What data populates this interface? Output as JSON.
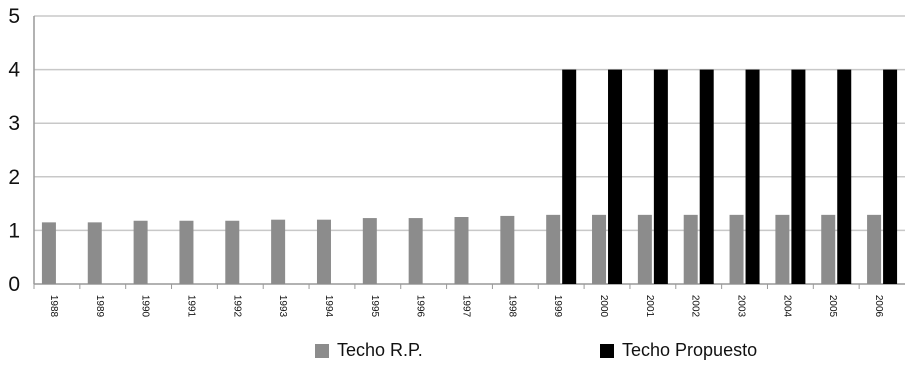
{
  "chart_data": {
    "type": "bar",
    "title": "",
    "xlabel": "",
    "ylabel": "",
    "ylim": [
      0,
      5
    ],
    "yticks": [
      0,
      1,
      2,
      3,
      4,
      5
    ],
    "grid": true,
    "legend_position": "bottom",
    "categories": [
      "1988",
      "1989",
      "1990",
      "1991",
      "1992",
      "1993",
      "1994",
      "1995",
      "1996",
      "1997",
      "1998",
      "1999",
      "2000",
      "2001",
      "2002",
      "2003",
      "2004",
      "2005",
      "2006"
    ],
    "series": [
      {
        "name": "Techo R.P.",
        "color": "#8c8c8c",
        "values": [
          1.15,
          1.15,
          1.18,
          1.18,
          1.18,
          1.2,
          1.2,
          1.23,
          1.23,
          1.25,
          1.27,
          1.29,
          1.29,
          1.29,
          1.29,
          1.29,
          1.29,
          1.29,
          1.29
        ]
      },
      {
        "name": "Techo Propuesto",
        "color": "#000000",
        "values": [
          null,
          null,
          null,
          null,
          null,
          null,
          null,
          null,
          null,
          null,
          null,
          4,
          4,
          4,
          4,
          4,
          4,
          4,
          4
        ]
      }
    ]
  }
}
